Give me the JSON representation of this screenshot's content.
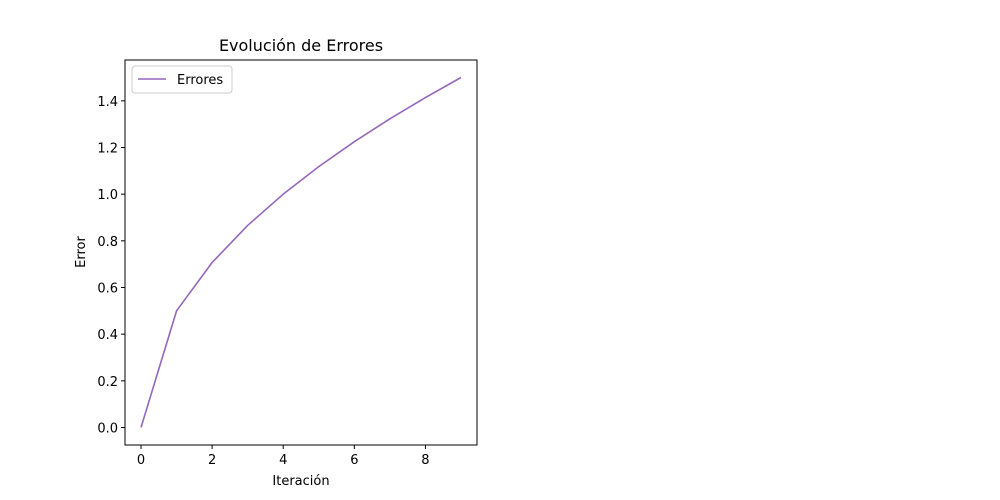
{
  "chart_data": {
    "type": "line",
    "title": "Evolución de Errores",
    "xlabel": "Iteración",
    "ylabel": "Error",
    "xlim": [
      -0.45,
      9.45
    ],
    "ylim": [
      -0.075,
      1.575
    ],
    "xticks": [
      0,
      2,
      4,
      6,
      8
    ],
    "xtick_labels": [
      "0",
      "2",
      "4",
      "6",
      "8"
    ],
    "yticks": [
      0.0,
      0.2,
      0.4,
      0.6,
      0.8,
      1.0,
      1.2,
      1.4
    ],
    "ytick_labels": [
      "0.0",
      "0.2",
      "0.4",
      "0.6",
      "0.8",
      "1.0",
      "1.2",
      "1.4"
    ],
    "grid": false,
    "legend_position": "upper left",
    "series": [
      {
        "name": "Errores",
        "color": "#9467bd",
        "x": [
          0,
          1,
          2,
          3,
          4,
          5,
          6,
          7,
          8,
          9
        ],
        "y": [
          0.0,
          0.5,
          0.707,
          0.866,
          1.0,
          1.118,
          1.225,
          1.323,
          1.414,
          1.5
        ]
      }
    ]
  }
}
